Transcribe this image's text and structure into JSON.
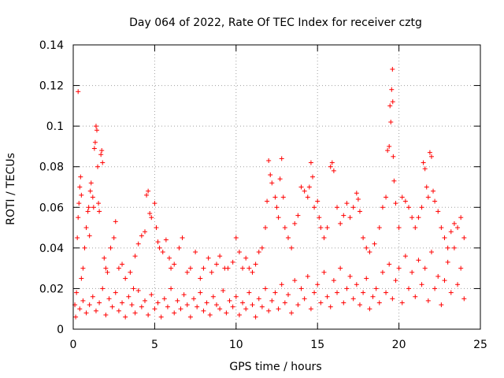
{
  "chart_data": {
    "type": "scatter",
    "title": "Day 064 of 2022, Rate Of TEC Index for receiver cztg",
    "xlabel": "GPS time / hours",
    "ylabel": "ROTI / TECUs",
    "xlim": [
      0,
      25
    ],
    "ylim": [
      0,
      0.14
    ],
    "x_ticks": [
      0,
      5,
      10,
      15,
      20,
      25
    ],
    "y_ticks": [
      0,
      0.02,
      0.04,
      0.06,
      0.08,
      0.1,
      0.12,
      0.14
    ],
    "x_tick_labels": [
      "0",
      "5",
      "10",
      "15",
      "20",
      "25"
    ],
    "y_tick_labels": [
      "0",
      "0.02",
      "0.04",
      "0.06",
      "0.08",
      "0.1",
      "0.12",
      "0.14"
    ],
    "grid": true,
    "marker": "+",
    "color": "#ff0000",
    "series": [
      {
        "name": "ROTI",
        "points": [
          [
            0.1,
            0.012
          ],
          [
            0.2,
            0.018
          ],
          [
            0.25,
            0.045
          ],
          [
            0.3,
            0.055
          ],
          [
            0.3,
            0.117
          ],
          [
            0.35,
            0.062
          ],
          [
            0.4,
            0.07
          ],
          [
            0.45,
            0.075
          ],
          [
            0.5,
            0.066
          ],
          [
            0.5,
            0.025
          ],
          [
            0.6,
            0.03
          ],
          [
            0.7,
            0.04
          ],
          [
            0.8,
            0.05
          ],
          [
            0.9,
            0.058
          ],
          [
            0.95,
            0.06
          ],
          [
            1.0,
            0.046
          ],
          [
            1.05,
            0.068
          ],
          [
            1.1,
            0.072
          ],
          [
            1.2,
            0.065
          ],
          [
            1.25,
            0.06
          ],
          [
            1.3,
            0.089
          ],
          [
            1.35,
            0.092
          ],
          [
            1.4,
            0.1
          ],
          [
            1.45,
            0.098
          ],
          [
            1.5,
            0.08
          ],
          [
            1.55,
            0.062
          ],
          [
            1.6,
            0.058
          ],
          [
            1.7,
            0.086
          ],
          [
            1.75,
            0.088
          ],
          [
            1.8,
            0.082
          ],
          [
            1.9,
            0.035
          ],
          [
            2.0,
            0.03
          ],
          [
            2.1,
            0.028
          ],
          [
            2.3,
            0.04
          ],
          [
            2.5,
            0.045
          ],
          [
            2.6,
            0.053
          ],
          [
            2.8,
            0.03
          ],
          [
            3.0,
            0.032
          ],
          [
            3.2,
            0.025
          ],
          [
            3.5,
            0.028
          ],
          [
            3.7,
            0.02
          ],
          [
            3.8,
            0.036
          ],
          [
            4.0,
            0.042
          ],
          [
            4.2,
            0.046
          ],
          [
            4.4,
            0.048
          ],
          [
            4.5,
            0.066
          ],
          [
            4.6,
            0.068
          ],
          [
            4.7,
            0.057
          ],
          [
            4.8,
            0.055
          ],
          [
            5.0,
            0.062
          ],
          [
            5.1,
            0.05
          ],
          [
            5.2,
            0.043
          ],
          [
            5.3,
            0.04
          ],
          [
            5.5,
            0.038
          ],
          [
            5.7,
            0.044
          ],
          [
            5.9,
            0.035
          ],
          [
            6.0,
            0.03
          ],
          [
            6.2,
            0.032
          ],
          [
            6.5,
            0.04
          ],
          [
            6.7,
            0.045
          ],
          [
            7.0,
            0.028
          ],
          [
            7.2,
            0.03
          ],
          [
            7.5,
            0.038
          ],
          [
            7.8,
            0.025
          ],
          [
            8.0,
            0.03
          ],
          [
            8.3,
            0.035
          ],
          [
            8.5,
            0.028
          ],
          [
            8.8,
            0.032
          ],
          [
            9.0,
            0.036
          ],
          [
            9.3,
            0.03
          ],
          [
            9.5,
            0.03
          ],
          [
            9.8,
            0.033
          ],
          [
            10.0,
            0.045
          ],
          [
            10.2,
            0.038
          ],
          [
            10.4,
            0.03
          ],
          [
            10.6,
            0.035
          ],
          [
            10.8,
            0.03
          ],
          [
            11.0,
            0.028
          ],
          [
            11.2,
            0.032
          ],
          [
            11.4,
            0.038
          ],
          [
            11.6,
            0.04
          ],
          [
            11.8,
            0.05
          ],
          [
            11.9,
            0.063
          ],
          [
            12.0,
            0.083
          ],
          [
            12.1,
            0.076
          ],
          [
            12.2,
            0.072
          ],
          [
            12.4,
            0.065
          ],
          [
            12.5,
            0.06
          ],
          [
            12.6,
            0.055
          ],
          [
            12.7,
            0.074
          ],
          [
            12.8,
            0.084
          ],
          [
            12.9,
            0.065
          ],
          [
            13.0,
            0.05
          ],
          [
            13.2,
            0.045
          ],
          [
            13.4,
            0.04
          ],
          [
            13.6,
            0.052
          ],
          [
            13.8,
            0.056
          ],
          [
            14.0,
            0.07
          ],
          [
            14.2,
            0.068
          ],
          [
            14.4,
            0.065
          ],
          [
            14.5,
            0.07
          ],
          [
            14.6,
            0.082
          ],
          [
            14.7,
            0.075
          ],
          [
            14.8,
            0.06
          ],
          [
            15.0,
            0.063
          ],
          [
            15.1,
            0.055
          ],
          [
            15.2,
            0.05
          ],
          [
            15.4,
            0.045
          ],
          [
            15.6,
            0.05
          ],
          [
            15.8,
            0.08
          ],
          [
            15.9,
            0.082
          ],
          [
            16.0,
            0.078
          ],
          [
            16.2,
            0.06
          ],
          [
            16.4,
            0.052
          ],
          [
            16.6,
            0.056
          ],
          [
            16.8,
            0.062
          ],
          [
            17.0,
            0.055
          ],
          [
            17.2,
            0.06
          ],
          [
            17.4,
            0.067
          ],
          [
            17.5,
            0.064
          ],
          [
            17.6,
            0.058
          ],
          [
            17.8,
            0.045
          ],
          [
            18.0,
            0.04
          ],
          [
            18.2,
            0.038
          ],
          [
            18.5,
            0.042
          ],
          [
            18.8,
            0.05
          ],
          [
            19.0,
            0.06
          ],
          [
            19.2,
            0.065
          ],
          [
            19.3,
            0.088
          ],
          [
            19.4,
            0.09
          ],
          [
            19.45,
            0.11
          ],
          [
            19.5,
            0.102
          ],
          [
            19.55,
            0.118
          ],
          [
            19.6,
            0.128
          ],
          [
            19.62,
            0.112
          ],
          [
            19.65,
            0.085
          ],
          [
            19.7,
            0.073
          ],
          [
            19.8,
            0.062
          ],
          [
            20.0,
            0.05
          ],
          [
            20.2,
            0.065
          ],
          [
            20.4,
            0.063
          ],
          [
            20.6,
            0.06
          ],
          [
            20.8,
            0.055
          ],
          [
            21.0,
            0.05
          ],
          [
            21.2,
            0.055
          ],
          [
            21.4,
            0.06
          ],
          [
            21.5,
            0.082
          ],
          [
            21.6,
            0.079
          ],
          [
            21.7,
            0.07
          ],
          [
            21.8,
            0.065
          ],
          [
            21.9,
            0.087
          ],
          [
            22.0,
            0.085
          ],
          [
            22.1,
            0.068
          ],
          [
            22.2,
            0.063
          ],
          [
            22.4,
            0.058
          ],
          [
            22.6,
            0.05
          ],
          [
            22.8,
            0.045
          ],
          [
            23.0,
            0.04
          ],
          [
            23.2,
            0.048
          ],
          [
            23.4,
            0.052
          ],
          [
            23.6,
            0.05
          ],
          [
            23.8,
            0.055
          ],
          [
            24.0,
            0.045
          ],
          [
            0.15,
            0.006
          ],
          [
            0.4,
            0.01
          ],
          [
            0.6,
            0.014
          ],
          [
            0.8,
            0.008
          ],
          [
            1.0,
            0.012
          ],
          [
            1.2,
            0.016
          ],
          [
            1.4,
            0.009
          ],
          [
            1.6,
            0.013
          ],
          [
            1.8,
            0.02
          ],
          [
            2.0,
            0.007
          ],
          [
            2.2,
            0.015
          ],
          [
            2.4,
            0.011
          ],
          [
            2.6,
            0.018
          ],
          [
            2.8,
            0.009
          ],
          [
            3.0,
            0.013
          ],
          [
            3.2,
            0.006
          ],
          [
            3.4,
            0.016
          ],
          [
            3.6,
            0.012
          ],
          [
            3.8,
            0.008
          ],
          [
            4.0,
            0.019
          ],
          [
            4.2,
            0.011
          ],
          [
            4.4,
            0.014
          ],
          [
            4.6,
            0.007
          ],
          [
            4.8,
            0.017
          ],
          [
            5.0,
            0.01
          ],
          [
            5.2,
            0.013
          ],
          [
            5.4,
            0.006
          ],
          [
            5.6,
            0.015
          ],
          [
            5.8,
            0.011
          ],
          [
            6.0,
            0.02
          ],
          [
            6.2,
            0.008
          ],
          [
            6.4,
            0.014
          ],
          [
            6.6,
            0.01
          ],
          [
            6.8,
            0.017
          ],
          [
            7.0,
            0.012
          ],
          [
            7.2,
            0.006
          ],
          [
            7.4,
            0.015
          ],
          [
            7.6,
            0.011
          ],
          [
            7.8,
            0.018
          ],
          [
            8.0,
            0.009
          ],
          [
            8.2,
            0.013
          ],
          [
            8.4,
            0.007
          ],
          [
            8.6,
            0.016
          ],
          [
            8.8,
            0.012
          ],
          [
            9.0,
            0.01
          ],
          [
            9.2,
            0.019
          ],
          [
            9.4,
            0.008
          ],
          [
            9.6,
            0.014
          ],
          [
            9.8,
            0.011
          ],
          [
            10.0,
            0.016
          ],
          [
            10.2,
            0.007
          ],
          [
            10.4,
            0.013
          ],
          [
            10.6,
            0.01
          ],
          [
            10.8,
            0.018
          ],
          [
            11.0,
            0.012
          ],
          [
            11.2,
            0.006
          ],
          [
            11.4,
            0.015
          ],
          [
            11.6,
            0.011
          ],
          [
            11.8,
            0.02
          ],
          [
            12.0,
            0.009
          ],
          [
            12.2,
            0.014
          ],
          [
            12.4,
            0.018
          ],
          [
            12.6,
            0.01
          ],
          [
            12.8,
            0.022
          ],
          [
            13.0,
            0.013
          ],
          [
            13.2,
            0.017
          ],
          [
            13.4,
            0.008
          ],
          [
            13.6,
            0.024
          ],
          [
            13.8,
            0.012
          ],
          [
            14.0,
            0.02
          ],
          [
            14.2,
            0.015
          ],
          [
            14.4,
            0.026
          ],
          [
            14.6,
            0.01
          ],
          [
            14.8,
            0.018
          ],
          [
            15.0,
            0.022
          ],
          [
            15.2,
            0.013
          ],
          [
            15.4,
            0.028
          ],
          [
            15.6,
            0.016
          ],
          [
            15.8,
            0.011
          ],
          [
            16.0,
            0.024
          ],
          [
            16.2,
            0.018
          ],
          [
            16.4,
            0.03
          ],
          [
            16.6,
            0.013
          ],
          [
            16.8,
            0.02
          ],
          [
            17.0,
            0.026
          ],
          [
            17.2,
            0.015
          ],
          [
            17.4,
            0.022
          ],
          [
            17.6,
            0.012
          ],
          [
            17.8,
            0.018
          ],
          [
            18.0,
            0.025
          ],
          [
            18.2,
            0.01
          ],
          [
            18.4,
            0.016
          ],
          [
            18.6,
            0.02
          ],
          [
            18.8,
            0.013
          ],
          [
            19.0,
            0.028
          ],
          [
            19.2,
            0.018
          ],
          [
            19.4,
            0.032
          ],
          [
            19.6,
            0.015
          ],
          [
            19.8,
            0.024
          ],
          [
            20.0,
            0.03
          ],
          [
            20.2,
            0.013
          ],
          [
            20.4,
            0.036
          ],
          [
            20.6,
            0.02
          ],
          [
            20.8,
            0.028
          ],
          [
            21.0,
            0.016
          ],
          [
            21.2,
            0.034
          ],
          [
            21.4,
            0.022
          ],
          [
            21.6,
            0.03
          ],
          [
            21.8,
            0.014
          ],
          [
            22.0,
            0.038
          ],
          [
            22.2,
            0.02
          ],
          [
            22.4,
            0.026
          ],
          [
            22.6,
            0.012
          ],
          [
            22.8,
            0.024
          ],
          [
            23.0,
            0.033
          ],
          [
            23.2,
            0.018
          ],
          [
            23.4,
            0.04
          ],
          [
            23.6,
            0.022
          ],
          [
            23.8,
            0.03
          ],
          [
            24.0,
            0.015
          ]
        ]
      }
    ]
  }
}
